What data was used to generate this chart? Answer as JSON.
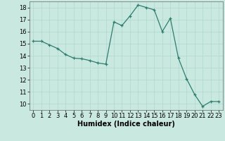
{
  "x": [
    0,
    1,
    2,
    3,
    4,
    5,
    6,
    7,
    8,
    9,
    10,
    11,
    12,
    13,
    14,
    15,
    16,
    17,
    18,
    19,
    20,
    21,
    22,
    23
  ],
  "y": [
    15.2,
    15.2,
    14.9,
    14.6,
    14.1,
    13.8,
    13.75,
    13.6,
    13.4,
    13.3,
    16.8,
    16.5,
    17.3,
    18.2,
    18.0,
    17.8,
    16.0,
    17.1,
    13.8,
    12.1,
    10.8,
    9.8,
    10.2,
    10.2
  ],
  "xlabel": "Humidex (Indice chaleur)",
  "xlim": [
    -0.5,
    23.5
  ],
  "ylim": [
    9.5,
    18.5
  ],
  "yticks": [
    10,
    11,
    12,
    13,
    14,
    15,
    16,
    17,
    18
  ],
  "xticks": [
    0,
    1,
    2,
    3,
    4,
    5,
    6,
    7,
    8,
    9,
    10,
    11,
    12,
    13,
    14,
    15,
    16,
    17,
    18,
    19,
    20,
    21,
    22,
    23
  ],
  "line_color": "#2e7d6e",
  "marker": "+",
  "bg_color": "#c8e8e0",
  "grid_color": "#b0d8d0",
  "xlabel_fontsize": 7,
  "tick_fontsize": 6
}
